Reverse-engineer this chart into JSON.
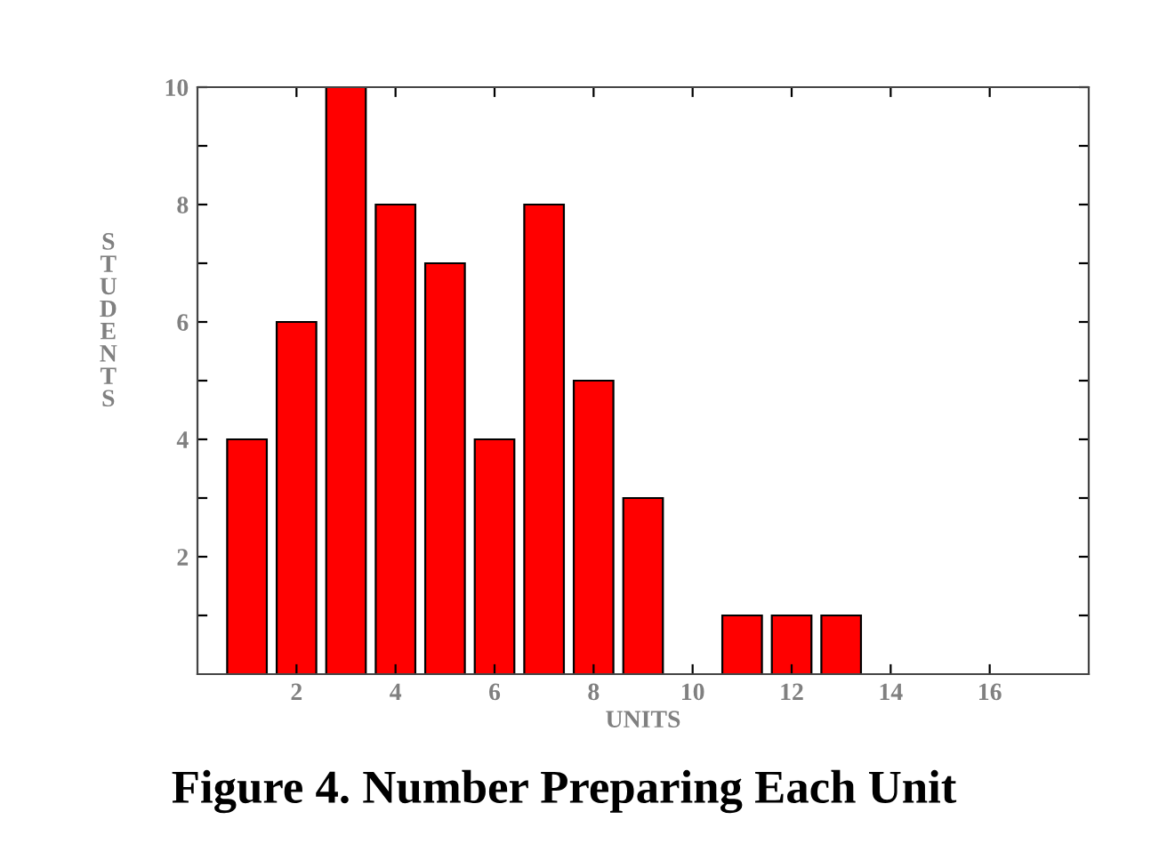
{
  "chart_data": {
    "type": "bar",
    "x": [
      1,
      2,
      3,
      4,
      5,
      6,
      7,
      8,
      9,
      10,
      11,
      12,
      13
    ],
    "values": [
      4,
      6,
      10,
      8,
      7,
      4,
      8,
      5,
      3,
      0,
      1,
      1,
      1
    ],
    "color": "#ff0000",
    "xlabel": "UNITS",
    "ylabel": "STUDENTS",
    "xlim": [
      0,
      18
    ],
    "xticks": [
      2,
      4,
      6,
      8,
      10,
      12,
      14,
      16
    ],
    "ylim": [
      0,
      10
    ],
    "yticks": [
      {
        "value": 1,
        "label": null
      },
      2,
      {
        "value": 3,
        "label": null
      },
      4,
      {
        "value": 5,
        "label": null
      },
      6,
      {
        "value": 7,
        "label": null
      },
      8,
      {
        "value": 9,
        "label": null
      },
      10
    ],
    "grid": false,
    "annotations": [
      "Figure 4. Number Preparing Each Unit"
    ]
  }
}
